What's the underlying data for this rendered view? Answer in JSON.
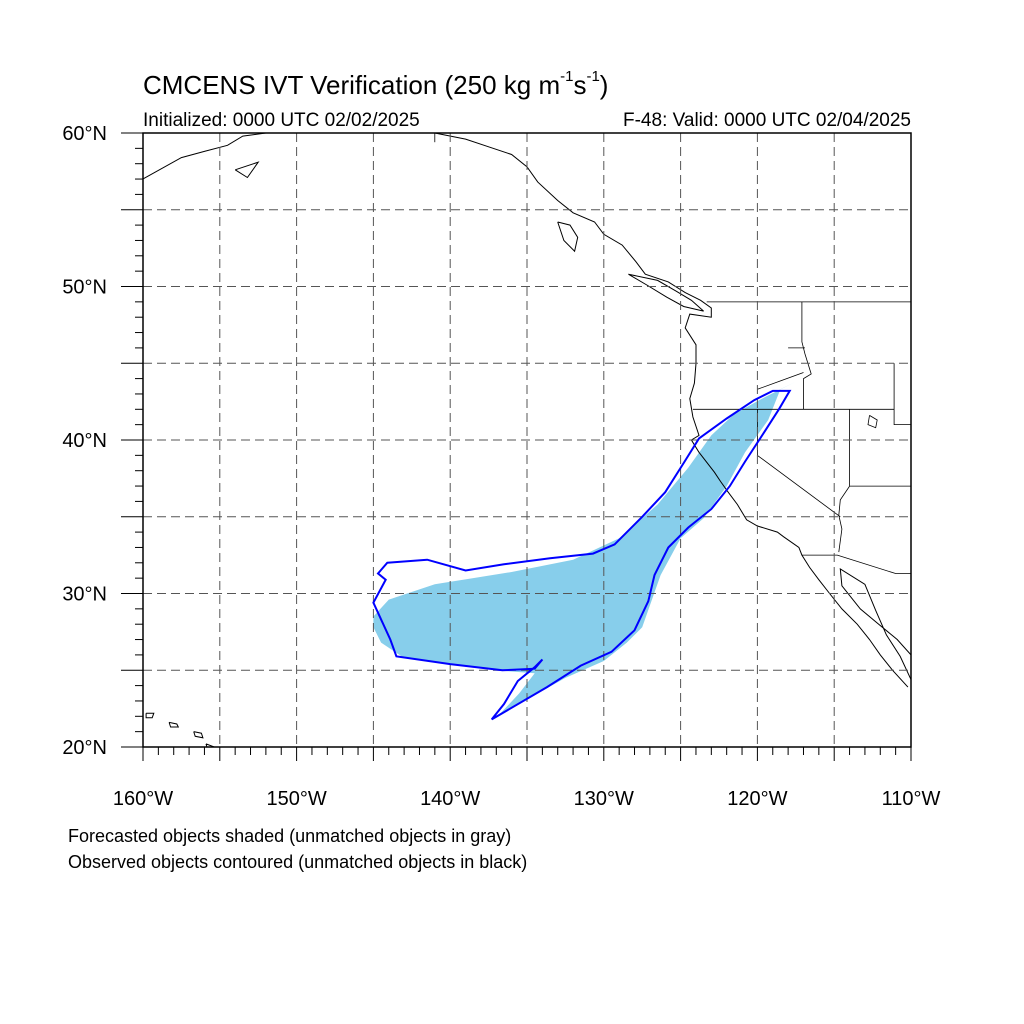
{
  "title": {
    "main_prefix": "CMCENS IVT Verification (250 kg m",
    "exp1": "-1",
    "middle": "s",
    "exp2": "-1",
    "suffix": ")"
  },
  "subtitle": {
    "left": "Initialized: 0000 UTC 02/02/2025",
    "right": "F-48: Valid: 0000 UTC 02/04/2025"
  },
  "notes": {
    "line1": "Forecasted objects shaded (unmatched objects in gray)",
    "line2": "Observed objects contoured (unmatched objects in black)"
  },
  "map_data": {
    "lon_range": [
      -160,
      -110
    ],
    "lat_range": [
      20,
      60
    ],
    "grid_spacing_deg": 5,
    "grid_style": "dashed",
    "lat_labels": [
      {
        "lat": 60,
        "label": "60°N"
      },
      {
        "lat": 50,
        "label": "50°N"
      },
      {
        "lat": 40,
        "label": "40°N"
      },
      {
        "lat": 30,
        "label": "30°N"
      },
      {
        "lat": 20,
        "label": "20°N"
      }
    ],
    "lon_labels": [
      {
        "lon": -160,
        "label": "160°W"
      },
      {
        "lon": -150,
        "label": "150°W"
      },
      {
        "lon": -140,
        "label": "140°W"
      },
      {
        "lon": -130,
        "label": "130°W"
      },
      {
        "lon": -120,
        "label": "120°W"
      },
      {
        "lon": -110,
        "label": "110°W"
      }
    ],
    "colors": {
      "forecast_fill": "#87ceeb",
      "observed_contour": "#0000ff",
      "coastline": "#000000",
      "grid": "#555555"
    },
    "forecast_object": [
      [
        -145.0,
        28.5
      ],
      [
        -144.0,
        29.6
      ],
      [
        -141.0,
        30.6
      ],
      [
        -138.5,
        31.0
      ],
      [
        -136.0,
        31.4
      ],
      [
        -132.0,
        32.2
      ],
      [
        -129.0,
        33.6
      ],
      [
        -126.5,
        35.8
      ],
      [
        -124.5,
        38.2
      ],
      [
        -123.0,
        40.3
      ],
      [
        -121.5,
        41.7
      ],
      [
        -119.5,
        42.8
      ],
      [
        -117.5,
        43.8
      ],
      [
        -118.5,
        43.3
      ],
      [
        -119.3,
        41.3
      ],
      [
        -120.8,
        39.2
      ],
      [
        -122.0,
        37.0
      ],
      [
        -123.5,
        34.9
      ],
      [
        -125.0,
        33.6
      ],
      [
        -126.3,
        31.2
      ],
      [
        -127.5,
        27.8
      ],
      [
        -128.5,
        26.8
      ],
      [
        -130.0,
        25.6
      ],
      [
        -132.5,
        24.5
      ],
      [
        -135.0,
        23.1
      ],
      [
        -137.0,
        21.9
      ],
      [
        -135.5,
        23.5
      ],
      [
        -134.5,
        24.8
      ],
      [
        -137.0,
        25.0
      ],
      [
        -140.0,
        25.4
      ],
      [
        -143.0,
        25.8
      ],
      [
        -144.5,
        26.8
      ],
      [
        -145.0,
        27.8
      ]
    ],
    "observed_contour": [
      [
        -144.1,
        32.0
      ],
      [
        -141.5,
        32.2
      ],
      [
        -139.0,
        31.5
      ],
      [
        -136.5,
        31.9
      ],
      [
        -133.5,
        32.3
      ],
      [
        -130.7,
        32.6
      ],
      [
        -129.3,
        33.2
      ],
      [
        -127.5,
        35.0
      ],
      [
        -126.0,
        36.6
      ],
      [
        -124.8,
        38.5
      ],
      [
        -123.8,
        40.1
      ],
      [
        -122.0,
        41.4
      ],
      [
        -120.2,
        42.6
      ],
      [
        -119.0,
        43.2
      ],
      [
        -117.9,
        43.2
      ],
      [
        -118.6,
        42.0
      ],
      [
        -119.5,
        40.6
      ],
      [
        -120.8,
        38.6
      ],
      [
        -121.8,
        37.0
      ],
      [
        -123.0,
        35.5
      ],
      [
        -124.5,
        34.3
      ],
      [
        -125.8,
        33.0
      ],
      [
        -126.7,
        31.2
      ],
      [
        -127.1,
        29.5
      ],
      [
        -128.0,
        27.6
      ],
      [
        -129.5,
        26.2
      ],
      [
        -131.5,
        25.3
      ],
      [
        -133.7,
        23.9
      ],
      [
        -137.3,
        21.8
      ],
      [
        -136.5,
        22.8
      ],
      [
        -135.6,
        24.3
      ],
      [
        -134.5,
        25.2
      ],
      [
        -134.0,
        25.7
      ],
      [
        -134.5,
        25.1
      ],
      [
        -136.6,
        25.0
      ],
      [
        -140.0,
        25.4
      ],
      [
        -143.5,
        25.9
      ],
      [
        -143.9,
        27.0
      ],
      [
        -145.0,
        29.4
      ],
      [
        -144.2,
        30.9
      ],
      [
        -144.7,
        31.3
      ]
    ],
    "coastlines": [
      [
        [
          -160,
          57.0
        ],
        [
          -157.5,
          58.4
        ],
        [
          -156.0,
          58.8
        ],
        [
          -154.5,
          59.2
        ],
        [
          -153.5,
          59.8
        ],
        [
          -152.0,
          60.0
        ]
      ],
      [
        [
          -154.0,
          57.6
        ],
        [
          -152.5,
          58.1
        ],
        [
          -153.2,
          57.1
        ],
        [
          -154.0,
          57.6
        ]
      ],
      [
        [
          -141,
          60.0
        ],
        [
          -139.0,
          59.6
        ],
        [
          -137.5,
          59.1
        ],
        [
          -136.0,
          58.6
        ],
        [
          -135.0,
          57.8
        ],
        [
          -134.3,
          56.8
        ],
        [
          -133.0,
          55.6
        ],
        [
          -132.0,
          54.8
        ],
        [
          -130.6,
          54.2
        ],
        [
          -130.0,
          53.4
        ],
        [
          -128.8,
          52.7
        ],
        [
          -127.9,
          51.6
        ],
        [
          -127.3,
          50.8
        ],
        [
          -125.8,
          50.3
        ],
        [
          -124.7,
          49.6
        ],
        [
          -123.7,
          49.1
        ],
        [
          -123.0,
          48.6
        ],
        [
          -123.0,
          48.0
        ],
        [
          -124.4,
          48.2
        ],
        [
          -124.7,
          47.3
        ],
        [
          -124.0,
          46.2
        ],
        [
          -124.0,
          45.0
        ],
        [
          -124.1,
          43.7
        ],
        [
          -124.4,
          42.7
        ],
        [
          -124.2,
          41.5
        ],
        [
          -123.8,
          40.3
        ],
        [
          -124.3,
          40.0
        ],
        [
          -123.8,
          39.2
        ],
        [
          -122.8,
          37.9
        ],
        [
          -122.4,
          37.3
        ],
        [
          -121.9,
          36.6
        ],
        [
          -121.3,
          35.8
        ],
        [
          -120.7,
          34.8
        ],
        [
          -120.0,
          34.4
        ],
        [
          -118.7,
          34.0
        ],
        [
          -118.3,
          33.7
        ],
        [
          -117.3,
          33.0
        ],
        [
          -117.1,
          32.5
        ],
        [
          -116.6,
          31.7
        ],
        [
          -116.0,
          30.9
        ],
        [
          -115.3,
          30.0
        ],
        [
          -114.5,
          29.0
        ],
        [
          -113.5,
          28.0
        ],
        [
          -112.7,
          27.0
        ],
        [
          -112.0,
          26.0
        ],
        [
          -111.2,
          25.0
        ],
        [
          -110.2,
          23.9
        ]
      ],
      [
        [
          -110,
          24.4
        ],
        [
          -110.7,
          25.9
        ],
        [
          -111.6,
          27.3
        ],
        [
          -112.3,
          28.9
        ],
        [
          -113.0,
          30.6
        ],
        [
          -114.6,
          31.6
        ],
        [
          -114.5,
          30.5
        ],
        [
          -113.3,
          29.0
        ],
        [
          -112.1,
          28.0
        ],
        [
          -110.9,
          27.0
        ],
        [
          -110,
          26.0
        ]
      ],
      [
        [
          -133.0,
          54.2
        ],
        [
          -132.2,
          54.0
        ],
        [
          -131.7,
          53.2
        ],
        [
          -131.9,
          52.3
        ],
        [
          -132.6,
          53.0
        ],
        [
          -133.0,
          54.2
        ]
      ],
      [
        [
          -128.4,
          50.8
        ],
        [
          -126.5,
          50.4
        ],
        [
          -125.3,
          49.7
        ],
        [
          -124.3,
          49.1
        ],
        [
          -123.5,
          48.4
        ],
        [
          -124.8,
          48.7
        ],
        [
          -125.9,
          49.3
        ],
        [
          -127.2,
          50.1
        ],
        [
          -128.4,
          50.8
        ]
      ],
      [
        [
          -155.9,
          20.2
        ],
        [
          -155.1,
          19.9
        ],
        [
          -154.9,
          19.5
        ],
        [
          -155.6,
          19.2
        ],
        [
          -155.9,
          20.2
        ]
      ],
      [
        [
          -156.7,
          21.0
        ],
        [
          -156.2,
          20.9
        ],
        [
          -156.1,
          20.6
        ],
        [
          -156.6,
          20.7
        ],
        [
          -156.7,
          21.0
        ]
      ],
      [
        [
          -158.3,
          21.6
        ],
        [
          -157.8,
          21.5
        ],
        [
          -157.7,
          21.3
        ],
        [
          -158.2,
          21.3
        ],
        [
          -158.3,
          21.6
        ]
      ],
      [
        [
          -159.8,
          22.2
        ],
        [
          -159.3,
          22.2
        ],
        [
          -159.4,
          21.9
        ],
        [
          -159.8,
          21.9
        ],
        [
          -159.8,
          22.2
        ]
      ]
    ],
    "borders": [
      [
        [
          -141.0,
          60.0
        ],
        [
          -141.0,
          59.4
        ]
      ],
      [
        [
          -123.3,
          49.0
        ],
        [
          -110,
          49.0
        ]
      ],
      [
        [
          -124.2,
          42.0
        ],
        [
          -111.1,
          42.0
        ]
      ],
      [
        [
          -120.0,
          42.0
        ],
        [
          -120.0,
          39.0
        ],
        [
          -114.6,
          35.0
        ]
      ],
      [
        [
          -117.1,
          49.0
        ],
        [
          -117.1,
          46.4
        ],
        [
          -116.9,
          45.6
        ],
        [
          -116.5,
          44.3
        ],
        [
          -117.0,
          44.0
        ],
        [
          -117.0,
          42.0
        ]
      ],
      [
        [
          -111.1,
          45.0
        ],
        [
          -111.1,
          41.0
        ],
        [
          -110,
          41.0
        ]
      ],
      [
        [
          -114.0,
          42.0
        ],
        [
          -114.0,
          37.0
        ],
        [
          -114.6,
          36.1
        ],
        [
          -114.7,
          35.1
        ],
        [
          -114.5,
          34.2
        ],
        [
          -114.7,
          32.7
        ]
      ],
      [
        [
          -120.0,
          43.3
        ],
        [
          -117.0,
          44.4
        ]
      ],
      [
        [
          -117.1,
          32.5
        ],
        [
          -114.8,
          32.5
        ],
        [
          -111.0,
          31.3
        ],
        [
          -110,
          31.3
        ]
      ],
      [
        [
          -118.0,
          46.0
        ],
        [
          -116.9,
          46.0
        ]
      ],
      [
        [
          -114.0,
          37.0
        ],
        [
          -110,
          37.0
        ]
      ]
    ],
    "lakes": [
      [
        [
          -112.7,
          41.6
        ],
        [
          -112.2,
          41.3
        ],
        [
          -112.3,
          40.8
        ],
        [
          -112.8,
          41.0
        ],
        [
          -112.7,
          41.6
        ]
      ]
    ]
  }
}
